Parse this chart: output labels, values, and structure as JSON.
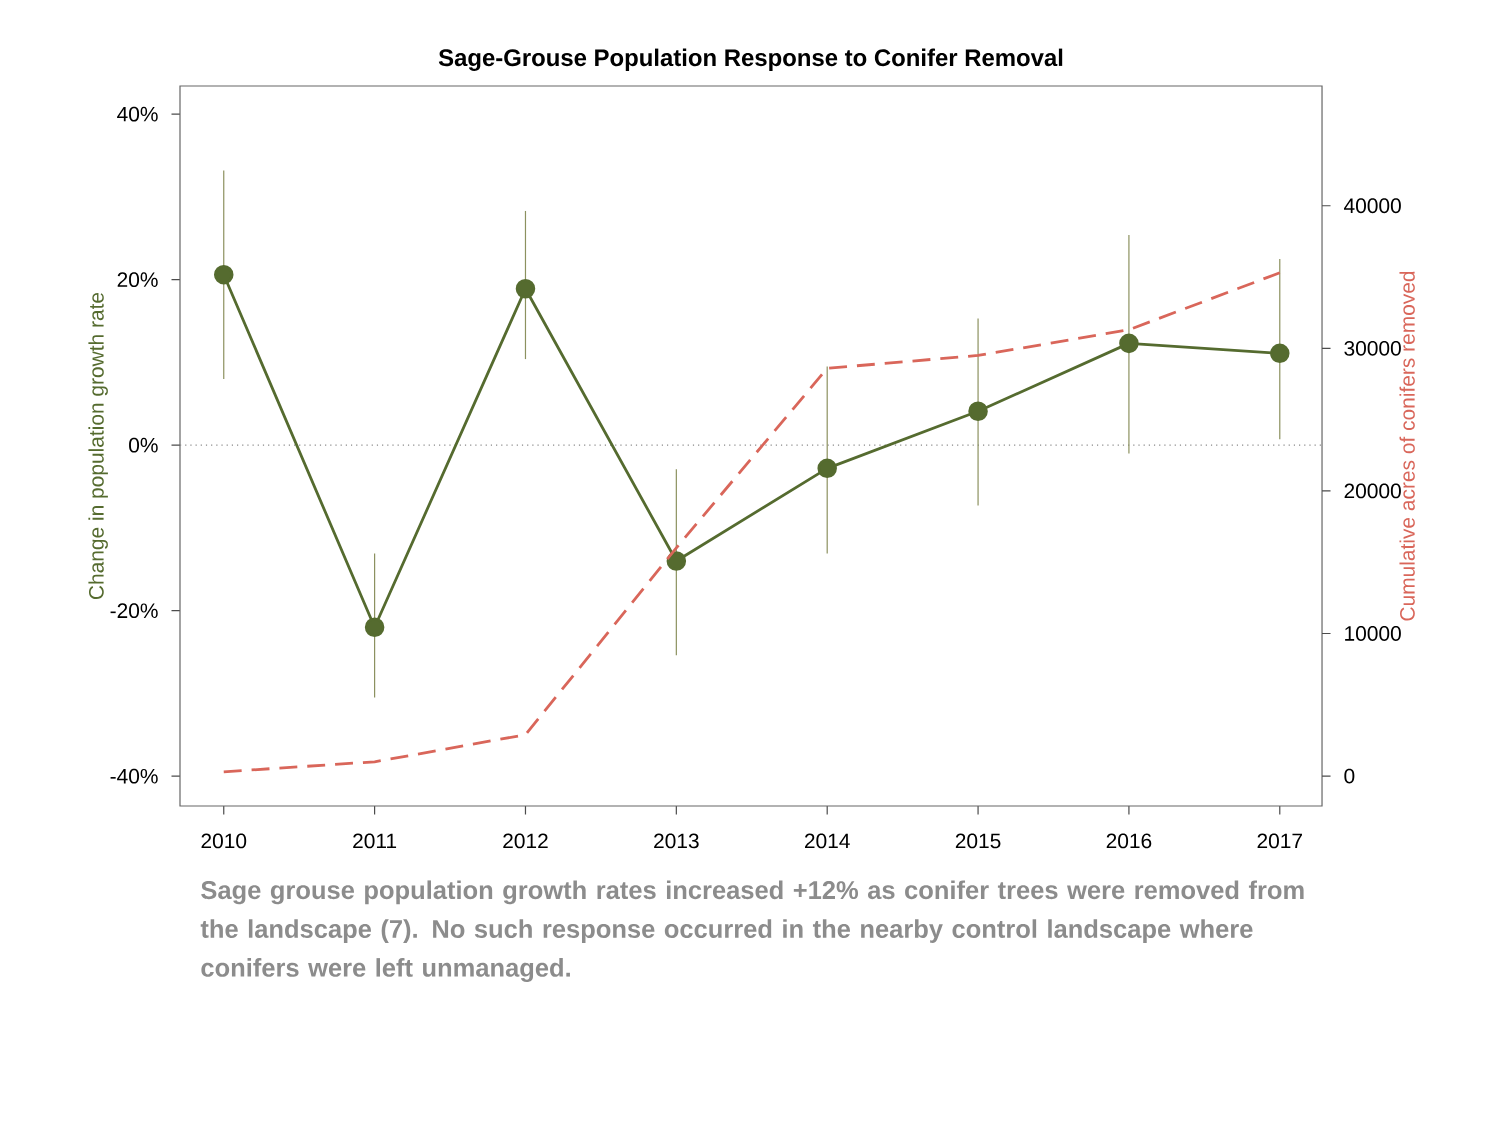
{
  "chart_data": {
    "type": "line",
    "title": "Sage-Grouse Population Response to Conifer Removal",
    "ylabel": "Change in population growth rate",
    "y2label": "Cumulative acres of conifers removed",
    "categories": [
      "2010",
      "2011",
      "2012",
      "2013",
      "2014",
      "2015",
      "2016",
      "2017"
    ],
    "series": [
      {
        "color": "#556b2f",
        "values": [
          20.6,
          -22,
          18.9,
          -14,
          -2.8,
          4.1,
          12.3,
          11.1
        ],
        "errors": [
          [
            8,
            33.2
          ],
          [
            -30.5,
            -13.1
          ],
          [
            10.4,
            28.3
          ],
          [
            -25.4,
            -2.9
          ],
          [
            -13.1,
            9.5
          ],
          [
            -7.3,
            15.3
          ],
          [
            -1,
            25.4
          ],
          [
            0.7,
            22.5
          ]
        ],
        "marker": "circle",
        "line_style": "solid"
      },
      {
        "color": "#d9665a",
        "axis": "y2",
        "values": [
          300,
          1000,
          2900,
          16000,
          28600,
          29500,
          31300,
          35300
        ],
        "marker": "none",
        "line_style": "dashed"
      }
    ],
    "ylim": [
      -43.6,
      43.4
    ],
    "yticks": [
      {
        "value": -40,
        "label": "-40%"
      },
      {
        "value": -20,
        "label": "-20%"
      },
      {
        "value": 0,
        "label": "0%"
      },
      {
        "value": 20,
        "label": "20%"
      },
      {
        "value": 40,
        "label": "40%"
      }
    ],
    "y2lim": [
      -2100,
      48400
    ],
    "y2ticks": [
      0,
      10000,
      20000,
      30000,
      40000
    ],
    "ref_lines": [
      {
        "axis": "y",
        "value": 0,
        "color": "#888888",
        "line_style": "dotted"
      }
    ],
    "grid": false,
    "annotations": [
      "Sage grouse population growth rates increased +12% as conifer trees were removed from the landscape (7). No such response occurred in the nearby control landscape where conifers were left unmanaged."
    ]
  }
}
